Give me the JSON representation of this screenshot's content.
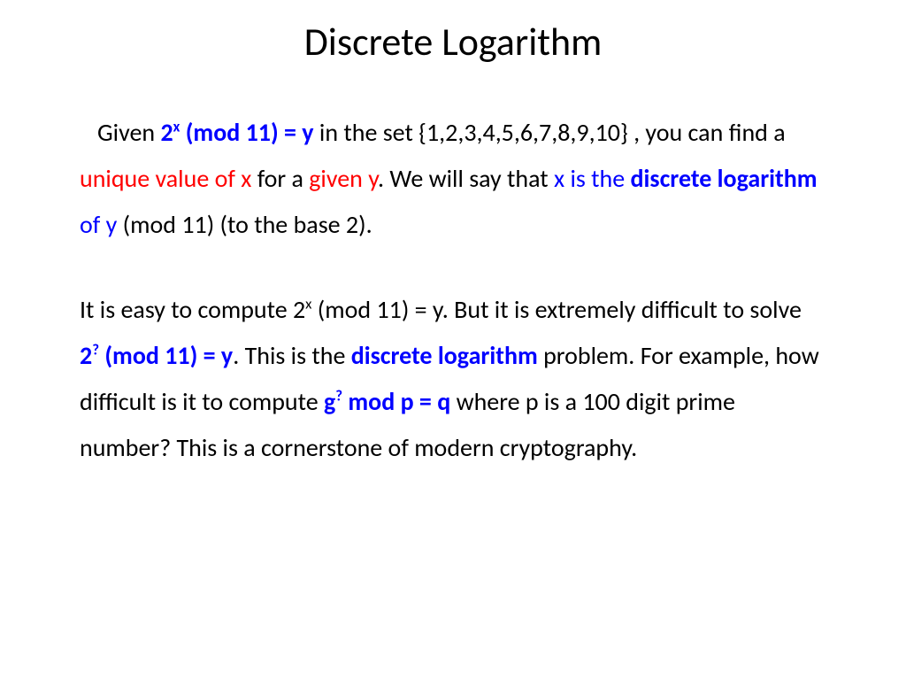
{
  "colors": {
    "background": "#ffffff",
    "text": "#000000",
    "blue": "#0000ff",
    "red": "#ff0000"
  },
  "typography": {
    "title_fontsize": 44,
    "body_fontsize": 28,
    "line_height": 1.85,
    "font_family": "Calibri"
  },
  "title": "Discrete Logarithm",
  "p1": {
    "s1": "Given ",
    "s2a": "2",
    "s2b": "x",
    "s2c": " (mod 11) = y",
    "s3": " in the set {1,2,3,4,5,6,7,8,9,10} , you can find a ",
    "s4": "unique value of x",
    "s5": " for a ",
    "s6": "given y",
    "s7": ". We will say that ",
    "s8": "x is the  ",
    "s9": "discrete logarithm",
    "s10": " of y ",
    "s11": "(mod 11) (to the base 2)."
  },
  "p2": {
    "s1": "It is easy to compute 2",
    "s1b": "x",
    "s1c": " (mod 11) = y. But it is extremely difficult to solve ",
    "s2a": "2",
    "s2b": "?",
    "s2c": " (mod 11) = y",
    "s3": ". This is the ",
    "s4": "discrete logarithm",
    "s5": " problem. For example, how difficult is it to compute  ",
    "s6a": "g",
    "s6b": "?",
    "s6c": " mod p = q ",
    "s7": "where p is a 100 digit prime number? This is a cornerstone of modern cryptography."
  }
}
